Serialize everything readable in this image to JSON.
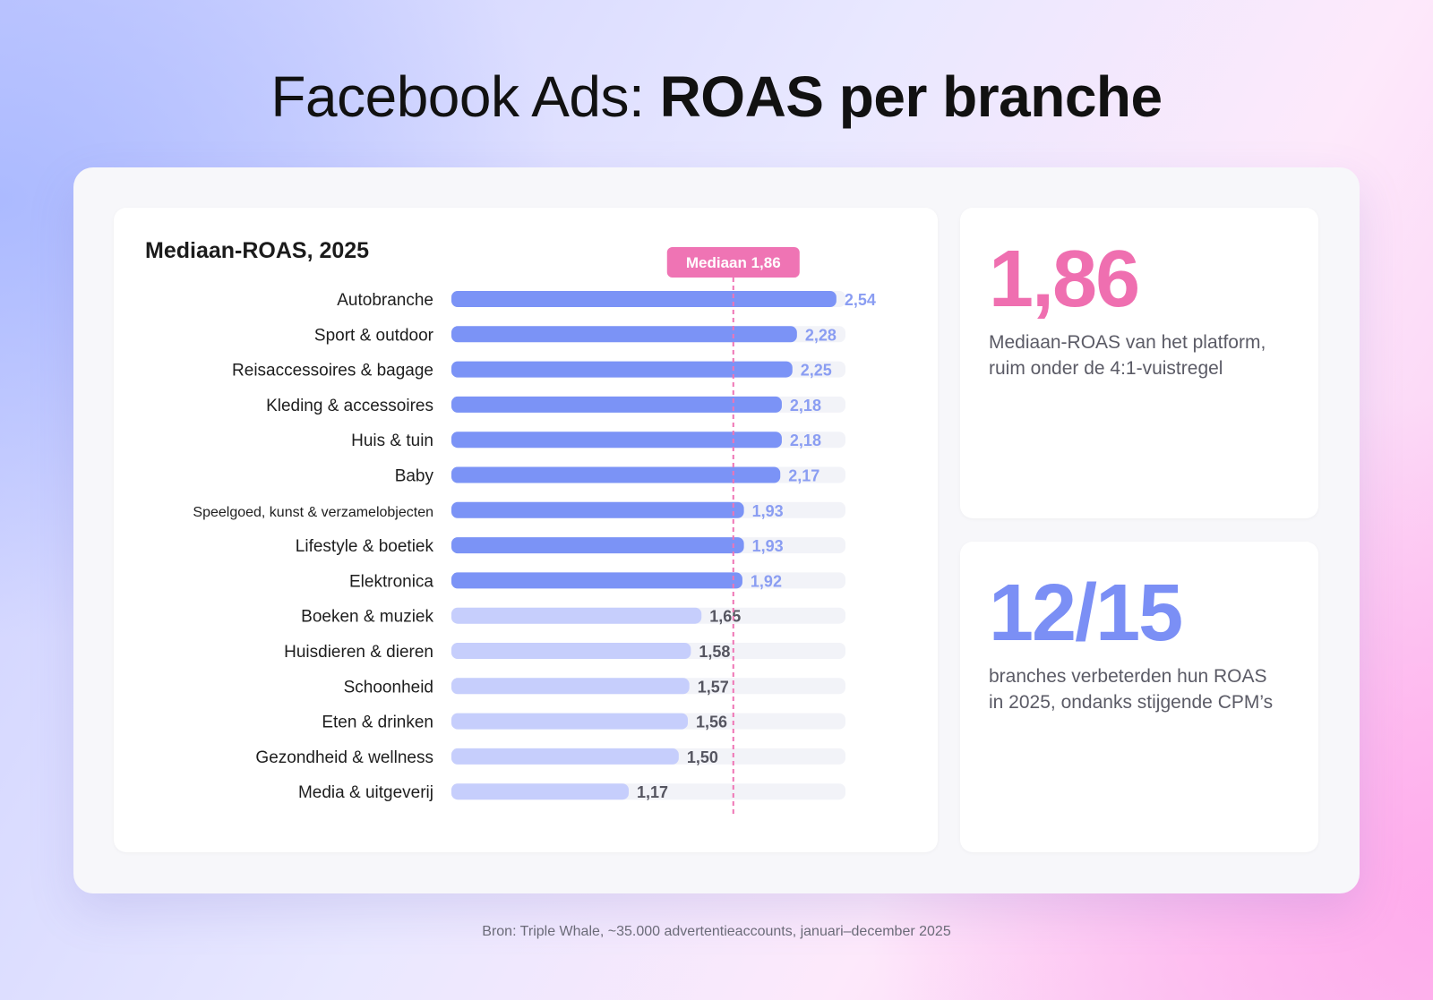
{
  "header": {
    "title_light": "Facebook Ads: ",
    "title_bold": "ROAS per branche"
  },
  "chart_data": {
    "type": "bar",
    "orientation": "horizontal",
    "title": "Mediaan-ROAS, 2025",
    "categories": [
      "Autobranche",
      "Sport & outdoor",
      "Reisaccessoires & bagage",
      "Kleding & accessoires",
      "Huis & tuin",
      "Baby",
      "Speelgoed, kunst & verzamelobjecten",
      "Lifestyle & boetiek",
      "Elektronica",
      "Boeken & muziek",
      "Huisdieren & dieren",
      "Schoonheid",
      "Eten & drinken",
      "Gezondheid & wellness",
      "Media & uitgeverij"
    ],
    "values": [
      2.54,
      2.28,
      2.25,
      2.18,
      2.18,
      2.17,
      1.93,
      1.93,
      1.92,
      1.65,
      1.58,
      1.57,
      1.56,
      1.5,
      1.17
    ],
    "value_labels": [
      "2,54",
      "2,28",
      "2,25",
      "2,18",
      "2,18",
      "2,17",
      "1,93",
      "1,93",
      "1,92",
      "1,65",
      "1,58",
      "1,57",
      "1,56",
      "1,50",
      "1,17"
    ],
    "xlim": [
      0,
      2.6
    ],
    "reference_line": {
      "value": 1.86,
      "label": "Mediaan 1,86"
    },
    "colors": {
      "above": "#7b93f6",
      "below": "#c6cefc",
      "track": "#f2f3f8",
      "label_above": "#8a9df2",
      "label_below": "#555560",
      "reference": "#ef74b4"
    }
  },
  "stats": [
    {
      "value": "1,86",
      "desc": "Mediaan-ROAS van het platform, ruim onder de 4:1-vuistregel",
      "color": "#ef6fb0"
    },
    {
      "value": "12/15",
      "desc": "branches verbeterden hun ROAS in 2025, ondanks stijgende CPM’s",
      "color": "#7b8ff5"
    }
  ],
  "footer": {
    "source": "Bron: Triple Whale, ~35.000 advertentieaccounts, januari–december 2025"
  }
}
